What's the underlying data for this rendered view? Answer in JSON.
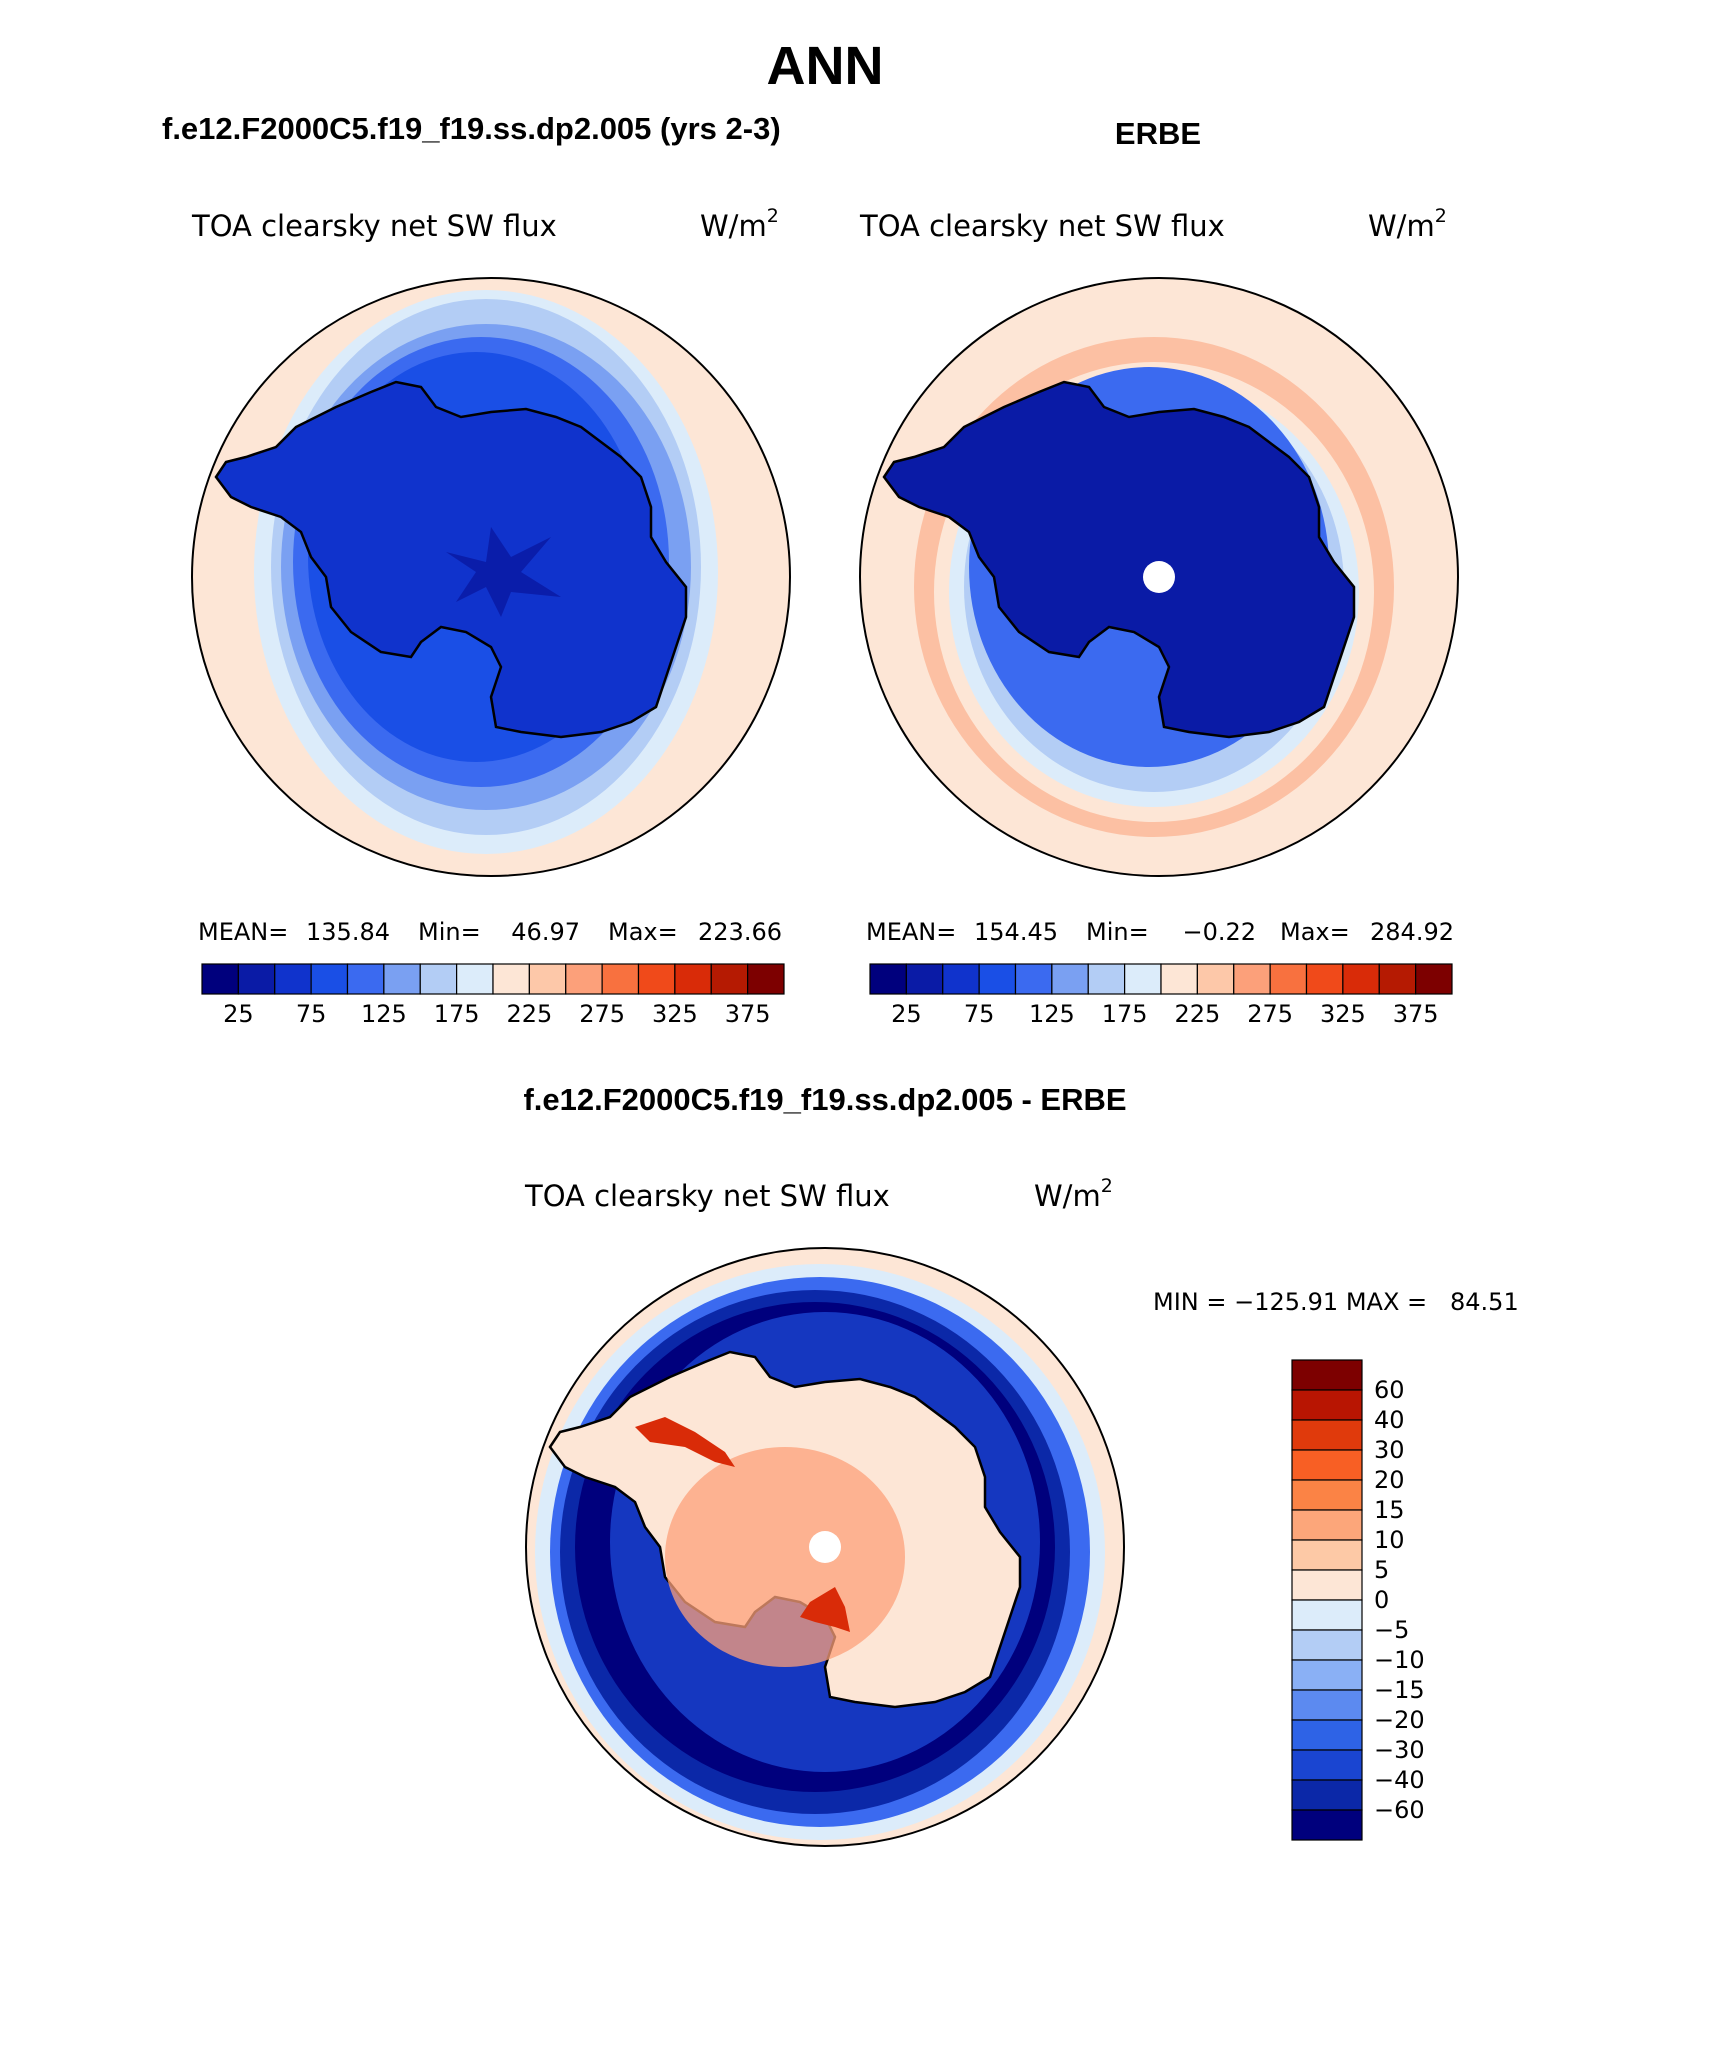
{
  "figure": {
    "title": "ANN"
  },
  "panels": [
    {
      "id": "model",
      "case_title": "f.e12.F2000C5.f19_f19.ss.dp2.005 (yrs 2-3)",
      "variable": "TOA clearsky net SW flux",
      "units": "W/m",
      "units_exp": "2",
      "stats": {
        "mean_label": "MEAN=",
        "mean": "135.84",
        "min_label": "Min=",
        "min": "46.97",
        "max_label": "Max=",
        "max": "223.66"
      }
    },
    {
      "id": "obs",
      "case_title": "ERBE",
      "variable": "TOA clearsky net SW flux",
      "units": "W/m",
      "units_exp": "2",
      "stats": {
        "mean_label": "MEAN=",
        "mean": "154.45",
        "min_label": "Min=",
        "min": "−0.22",
        "max_label": "Max=",
        "max": "284.92"
      }
    },
    {
      "id": "diff",
      "case_title": "f.e12.F2000C5.f19_f19.ss.dp2.005 - ERBE",
      "variable": "TOA clearsky net SW flux",
      "units": "W/m",
      "units_exp": "2",
      "minmax": "MIN = −125.91 MAX =   84.51"
    }
  ],
  "abs_colorbar": {
    "colors": [
      "#00007d",
      "#0a1ba6",
      "#1033cc",
      "#1a4fe6",
      "#3b6af0",
      "#7aa0f2",
      "#b3cdf5",
      "#dcecfa",
      "#fde6d6",
      "#fdc8a9",
      "#fca07a",
      "#f8713f",
      "#f04a1a",
      "#d92b08",
      "#b51a02",
      "#7d0000"
    ],
    "tick_labels": [
      "25",
      "75",
      "125",
      "175",
      "225",
      "275",
      "325",
      "375"
    ]
  },
  "diff_colorbar": {
    "colors_top_to_bottom": [
      "#7d0000",
      "#b81502",
      "#e03a0c",
      "#f85f24",
      "#fb8345",
      "#fca67a",
      "#fdc9a6",
      "#fde6d6",
      "#dcecfa",
      "#b3cdf5",
      "#8ab0f5",
      "#5c8af0",
      "#2e63e6",
      "#1a45d1",
      "#0b28a8",
      "#00007d"
    ],
    "levels": [
      "60",
      "40",
      "30",
      "20",
      "15",
      "10",
      "5",
      "0",
      "−5",
      "−10",
      "−15",
      "−20",
      "−30",
      "−40",
      "−60"
    ]
  },
  "map_colors": {
    "ocean_light": "#fde6d6",
    "ring1": "#dcecfa",
    "ring2": "#b3cdf5",
    "ring3": "#7aa0f2",
    "ring4": "#3b6af0",
    "ring5": "#1a4fe6",
    "land": "#1033cc",
    "dark": "#00007d",
    "warm": "#fca07a",
    "hot": "#d92b08"
  }
}
